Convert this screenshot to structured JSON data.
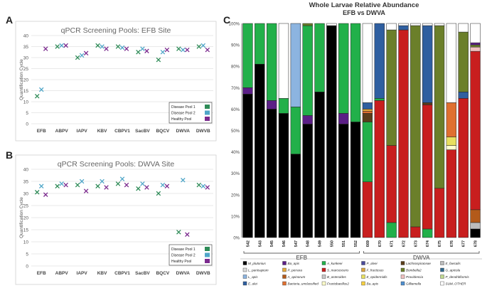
{
  "panels": {
    "A": "A",
    "B": "B",
    "C": "C"
  },
  "colors": {
    "disease1": "#2e8b57",
    "disease2": "#4fa6c8",
    "healthy": "#7b2a8e",
    "grid": "#e2e2e2",
    "axis": "#999999",
    "black": "#000000"
  },
  "chart_data": [
    {
      "type": "scatter",
      "title": "qPCR Screening Pools: EFB Site",
      "ylabel": "Quantification Cycle",
      "ylim": [
        0,
        40
      ],
      "yticks": [
        0,
        5,
        10,
        15,
        20,
        25,
        30,
        35,
        40
      ],
      "categories": [
        "EFB",
        "ABPV",
        "IAPV",
        "KBV",
        "CBPV1",
        "SacBV",
        "BQCV",
        "DWVA",
        "DWVB"
      ],
      "legend": [
        "Disease Pool 1",
        "Disease Pool 2",
        "Healthy Pool"
      ],
      "series": [
        {
          "name": "Disease Pool 1",
          "values": [
            12.5,
            35,
            30,
            35.5,
            35,
            32.5,
            29,
            34,
            35
          ]
        },
        {
          "name": "Disease Pool 2",
          "values": [
            15.5,
            35.5,
            31,
            35,
            34.5,
            34,
            32.5,
            33.5,
            35.5
          ]
        },
        {
          "name": "Healthy Pool",
          "values": [
            34,
            35.5,
            32,
            34,
            34,
            33,
            33.5,
            33.5,
            33.5
          ]
        }
      ]
    },
    {
      "type": "scatter",
      "title": "qPCR Screening Pools: DWVA Site",
      "ylabel": "Quantification Cycle",
      "ylim": [
        0,
        40
      ],
      "yticks": [
        0,
        5,
        10,
        15,
        20,
        25,
        30,
        35,
        40
      ],
      "categories": [
        "EFB",
        "ABPV",
        "IAPV",
        "KBV",
        "CBPV1",
        "SacBV",
        "BQCV",
        "DWVA",
        "DWVB"
      ],
      "legend": [
        "Disease Pool 1",
        "Disease Pool 2",
        "Healthy Pool"
      ],
      "series": [
        {
          "name": "Disease Pool 1",
          "values": [
            30.5,
            33,
            33.5,
            33,
            34,
            32,
            30,
            14,
            33.5
          ]
        },
        {
          "name": "Disease Pool 2",
          "values": [
            33,
            34,
            35,
            35,
            36,
            34,
            33.5,
            35.5,
            33
          ]
        },
        {
          "name": "Healthy Pool",
          "values": [
            29.5,
            33.5,
            31,
            32.5,
            33.5,
            32.5,
            33,
            13,
            32.5
          ]
        }
      ]
    },
    {
      "type": "bar",
      "stacked": true,
      "title": "Whole Larvae Relative Abundance",
      "subtitle": "EFB vs DWVA",
      "ylim": [
        0,
        100
      ],
      "yticks": [
        "0%",
        "10%",
        "20%",
        "30%",
        "40%",
        "50%",
        "60%",
        "70%",
        "80%",
        "90%",
        "100%"
      ],
      "categories": [
        "542",
        "543",
        "545",
        "546",
        "547",
        "548",
        "549",
        "550",
        "551",
        "552",
        "669",
        "670",
        "671",
        "672",
        "673",
        "674",
        "675",
        "676",
        "677",
        "678"
      ],
      "groups": [
        {
          "label": "EFB",
          "count": 10
        },
        {
          "label": "DWVA",
          "count": 10
        }
      ],
      "taxa": [
        {
          "name": "M_plutonius",
          "color": "#000000"
        },
        {
          "name": "Ba_apis",
          "color": "#5b1f86"
        },
        {
          "name": "A_kunkeei",
          "color": "#22b04a"
        },
        {
          "name": "P_alvei",
          "color": "#4a4a9a"
        },
        {
          "name": "Lachnospiraceae",
          "color": "#5a3e1b"
        },
        {
          "name": "E_faecalis",
          "color": "#bcbcbc"
        },
        {
          "name": "L_panisapium",
          "color": "#dcdcdc"
        },
        {
          "name": "P_perrara",
          "color": "#e4a93c"
        },
        {
          "name": "S_marcescens",
          "color": "#c81e1e"
        },
        {
          "name": "F_fructosus",
          "color": "#d9a441"
        },
        {
          "name": "Bombella2",
          "color": "#6b7f2a"
        },
        {
          "name": "G_apicola",
          "color": "#2f6a8e"
        },
        {
          "name": "L_apis",
          "color": "#8cb4e0"
        },
        {
          "name": "A_apinorum",
          "color": "#b35a1a"
        },
        {
          "name": "B_asteroides",
          "color": "#c8c8c8"
        },
        {
          "name": "E_epidermidis",
          "color": "#e8e060"
        },
        {
          "name": "Providencia",
          "color": "#f0c0c0"
        },
        {
          "name": "P_dendritiformis",
          "color": "#c0d890"
        },
        {
          "name": "E_ulei",
          "color": "#2f5fa0"
        },
        {
          "name": "Bacteria_unclassified",
          "color": "#e07030"
        },
        {
          "name": "Fructobacillus2",
          "color": "#ffffcc"
        },
        {
          "name": "Ba_apis",
          "color": "#f7d040"
        },
        {
          "name": "Gilliamella",
          "color": "#4f8fcf"
        },
        {
          "name": "SUM_OTHER",
          "color": "#ffffff"
        }
      ],
      "bars": [
        [
          {
            "taxon": "M_plutonius",
            "value": 67
          },
          {
            "taxon": "Ba_apis",
            "value": 3
          },
          {
            "taxon": "A_kunkeei",
            "value": 30
          }
        ],
        [
          {
            "taxon": "M_plutonius",
            "value": 81
          },
          {
            "taxon": "A_kunkeei",
            "value": 19
          }
        ],
        [
          {
            "taxon": "M_plutonius",
            "value": 60
          },
          {
            "taxon": "Ba_apis",
            "value": 4
          },
          {
            "taxon": "A_kunkeei",
            "value": 36
          }
        ],
        [
          {
            "taxon": "M_plutonius",
            "value": 58
          },
          {
            "taxon": "A_kunkeei",
            "value": 7
          },
          {
            "taxon": "SUM_OTHER",
            "value": 35
          }
        ],
        [
          {
            "taxon": "M_plutonius",
            "value": 39
          },
          {
            "taxon": "A_kunkeei",
            "value": 22
          },
          {
            "taxon": "L_apis",
            "value": 39
          }
        ],
        [
          {
            "taxon": "M_plutonius",
            "value": 53
          },
          {
            "taxon": "Ba_apis",
            "value": 4
          },
          {
            "taxon": "A_kunkeei",
            "value": 42
          },
          {
            "taxon": "Bombella2",
            "value": 1
          }
        ],
        [
          {
            "taxon": "M_plutonius",
            "value": 68
          },
          {
            "taxon": "A_kunkeei",
            "value": 32
          }
        ],
        [
          {
            "taxon": "M_plutonius",
            "value": 99
          },
          {
            "taxon": "SUM_OTHER",
            "value": 1
          }
        ],
        [
          {
            "taxon": "M_plutonius",
            "value": 53
          },
          {
            "taxon": "Ba_apis",
            "value": 5
          },
          {
            "taxon": "A_kunkeei",
            "value": 42
          }
        ],
        [
          {
            "taxon": "M_plutonius",
            "value": 54
          },
          {
            "taxon": "A_kunkeei",
            "value": 46
          }
        ],
        [
          {
            "taxon": "S_marcescens",
            "value": 26
          },
          {
            "taxon": "A_kunkeei",
            "value": 28
          },
          {
            "taxon": "Lachnospiraceae",
            "value": 4
          },
          {
            "taxon": "Bacteria_unclassified",
            "value": 1
          },
          {
            "taxon": "P_perrara",
            "value": 1
          },
          {
            "taxon": "E_ulei",
            "value": 3
          },
          {
            "taxon": "SUM_OTHER",
            "value": 37
          }
        ],
        [
          {
            "taxon": "S_marcescens",
            "value": 64
          },
          {
            "taxon": "A_kunkeei",
            "value": 1
          },
          {
            "taxon": "E_ulei",
            "value": 35
          }
        ],
        [
          {
            "taxon": "A_kunkeei",
            "value": 7
          },
          {
            "taxon": "S_marcescens",
            "value": 36
          },
          {
            "taxon": "Bombella2",
            "value": 54
          },
          {
            "taxon": "SUM_OTHER",
            "value": 3
          }
        ],
        [
          {
            "taxon": "S_marcescens",
            "value": 97
          },
          {
            "taxon": "E_ulei",
            "value": 2
          },
          {
            "taxon": "SUM_OTHER",
            "value": 1
          }
        ],
        [
          {
            "taxon": "S_marcescens",
            "value": 5
          },
          {
            "taxon": "Bombella2",
            "value": 94
          },
          {
            "taxon": "SUM_OTHER",
            "value": 1
          }
        ],
        [
          {
            "taxon": "A_kunkeei",
            "value": 4
          },
          {
            "taxon": "S_marcescens",
            "value": 58
          },
          {
            "taxon": "Lachnospiraceae",
            "value": 1
          },
          {
            "taxon": "E_ulei",
            "value": 36
          },
          {
            "taxon": "SUM_OTHER",
            "value": 1
          }
        ],
        [
          {
            "taxon": "S_marcescens",
            "value": 23
          },
          {
            "taxon": "Bombella2",
            "value": 76
          },
          {
            "taxon": "SUM_OTHER",
            "value": 1
          }
        ],
        [
          {
            "taxon": "S_marcescens",
            "value": 41
          },
          {
            "taxon": "Fructobacillus2",
            "value": 2
          },
          {
            "taxon": "E_epidermidis",
            "value": 4
          },
          {
            "taxon": "Bacteria_unclassified",
            "value": 16
          },
          {
            "taxon": "SUM_OTHER",
            "value": 37
          }
        ],
        [
          {
            "taxon": "S_marcescens",
            "value": 65
          },
          {
            "taxon": "E_ulei",
            "value": 3
          },
          {
            "taxon": "Bombella2",
            "value": 28
          },
          {
            "taxon": "SUM_OTHER",
            "value": 4
          }
        ],
        [
          {
            "taxon": "M_plutonius",
            "value": 4
          },
          {
            "taxon": "E_faecalis",
            "value": 3
          },
          {
            "taxon": "A_apinorum",
            "value": 6
          },
          {
            "taxon": "S_marcescens",
            "value": 74
          },
          {
            "taxon": "Providencia",
            "value": 2
          },
          {
            "taxon": "Bombella2",
            "value": 1
          },
          {
            "taxon": "Ba_apis",
            "value": 1
          },
          {
            "taxon": "SUM_OTHER",
            "value": 9
          }
        ]
      ]
    }
  ]
}
